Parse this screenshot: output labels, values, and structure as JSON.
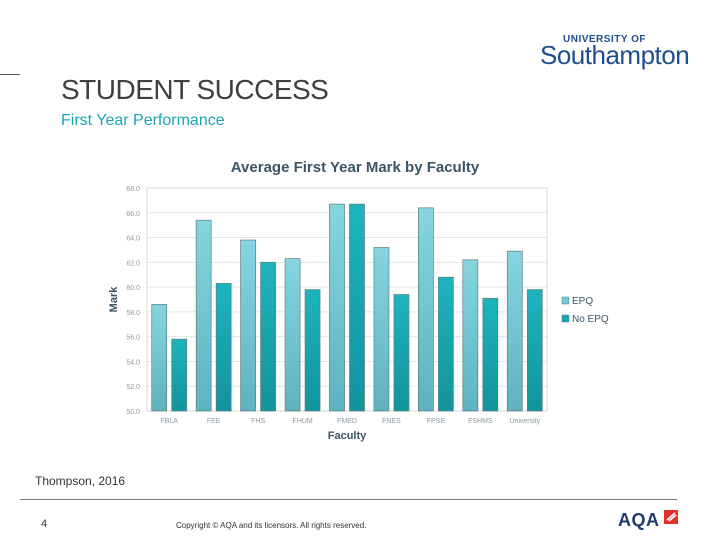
{
  "logo": {
    "small": "UNIVERSITY OF",
    "big": "Southampton"
  },
  "slide": {
    "title": "STUDENT SUCCESS",
    "subtitle": "First Year Performance",
    "citation": "Thompson, 2016",
    "page_number": "4",
    "copyright": "Copyright © AQA and its licensors. All rights reserved.",
    "aqa_logo": "AQA"
  },
  "colors": {
    "epq": "#74c8d3",
    "no_epq": "#17a3ad",
    "axis_text": "#8a9aa4",
    "label_text": "#3a5566"
  },
  "chart_data": {
    "type": "bar",
    "title": "Average First Year Mark by Faculty",
    "xlabel": "Faculty",
    "ylabel": "Mark",
    "ylim": [
      50,
      68
    ],
    "yticks": [
      "50.0",
      "52.0",
      "54.0",
      "56.0",
      "58.0",
      "60.0",
      "62.0",
      "64.0",
      "66.0",
      "68.0"
    ],
    "categories": [
      "FBLA",
      "FEE",
      "FHS",
      "FHUM",
      "FMED",
      "FNES",
      "FPSE",
      "FSHMS",
      "University"
    ],
    "series": [
      {
        "name": "EPQ",
        "values": [
          58.6,
          65.4,
          63.8,
          62.3,
          66.7,
          63.2,
          66.4,
          62.2,
          62.9
        ]
      },
      {
        "name": "No EPQ",
        "values": [
          55.8,
          60.3,
          62.0,
          59.8,
          66.7,
          59.4,
          60.8,
          59.1,
          59.8
        ]
      }
    ],
    "legend_position": "right"
  }
}
